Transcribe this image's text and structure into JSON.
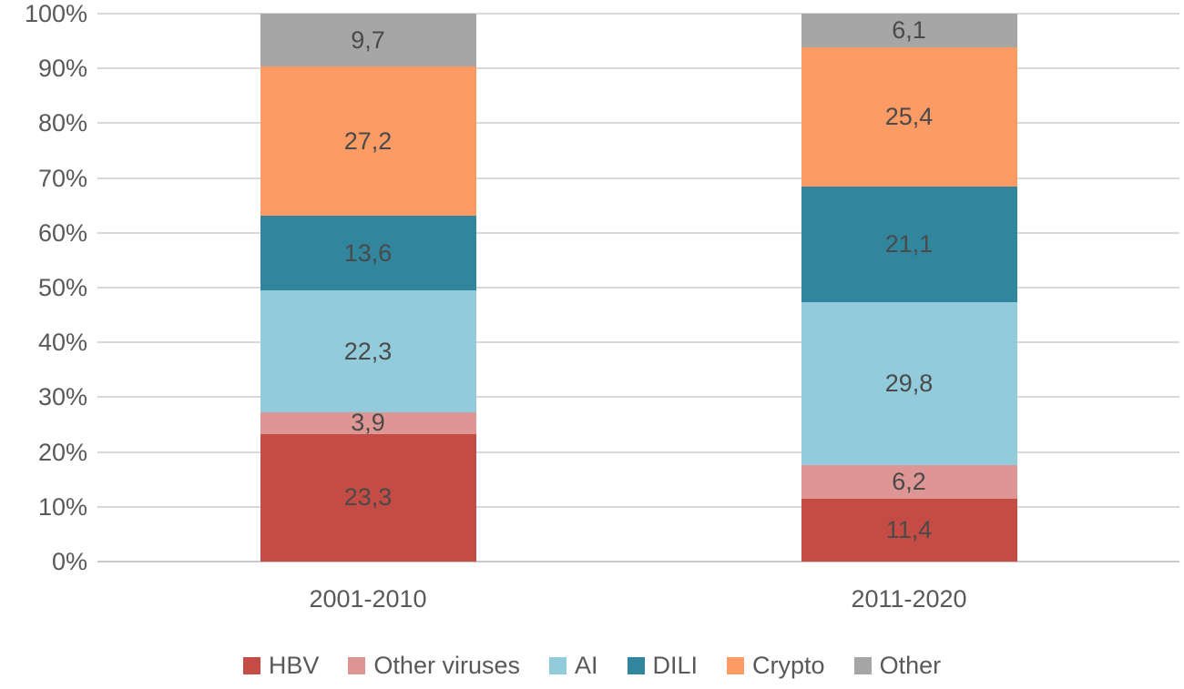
{
  "chart_data": {
    "type": "bar",
    "subtype": "stacked-100-percent",
    "title": "",
    "xlabel": "",
    "ylabel": "",
    "categories": [
      "2001-2010",
      "2011-2020"
    ],
    "series": [
      {
        "name": "HBV",
        "color": "#c54b45",
        "values": [
          23.3,
          11.4
        ],
        "labels": [
          "23,3",
          "11,4"
        ]
      },
      {
        "name": "Other viruses",
        "color": "#de9695",
        "values": [
          3.9,
          6.2
        ],
        "labels": [
          "3,9",
          "6,2"
        ]
      },
      {
        "name": "AI",
        "color": "#92cbdb",
        "values": [
          22.3,
          29.8
        ],
        "labels": [
          "22,3",
          "29,8"
        ]
      },
      {
        "name": "DILI",
        "color": "#31859c",
        "values": [
          13.6,
          21.1
        ],
        "labels": [
          "13,6",
          "21,1"
        ]
      },
      {
        "name": "Crypto",
        "color": "#fc9b63",
        "values": [
          27.2,
          25.4
        ],
        "labels": [
          "27,2",
          "25,4"
        ]
      },
      {
        "name": "Other",
        "color": "#a6a6a6",
        "values": [
          9.7,
          6.1
        ],
        "labels": [
          "9,7",
          "6,1"
        ]
      }
    ],
    "y_axis": {
      "min": 0,
      "max": 100,
      "grid": true,
      "ticks": [
        {
          "value": 0,
          "label": "0%"
        },
        {
          "value": 10,
          "label": "10%"
        },
        {
          "value": 20,
          "label": "20%"
        },
        {
          "value": 30,
          "label": "30%"
        },
        {
          "value": 40,
          "label": "40%"
        },
        {
          "value": 50,
          "label": "50%"
        },
        {
          "value": 60,
          "label": "60%"
        },
        {
          "value": 70,
          "label": "70%"
        },
        {
          "value": 80,
          "label": "80%"
        },
        {
          "value": 90,
          "label": "90%"
        },
        {
          "value": 100,
          "label": "100%"
        }
      ]
    },
    "legend_position": "bottom",
    "colors": {
      "gridline": "#d9d9d9",
      "axis_line": "#c9c9c9",
      "axis_text": "#595959",
      "value_label_text": "#4a4a4a"
    }
  }
}
